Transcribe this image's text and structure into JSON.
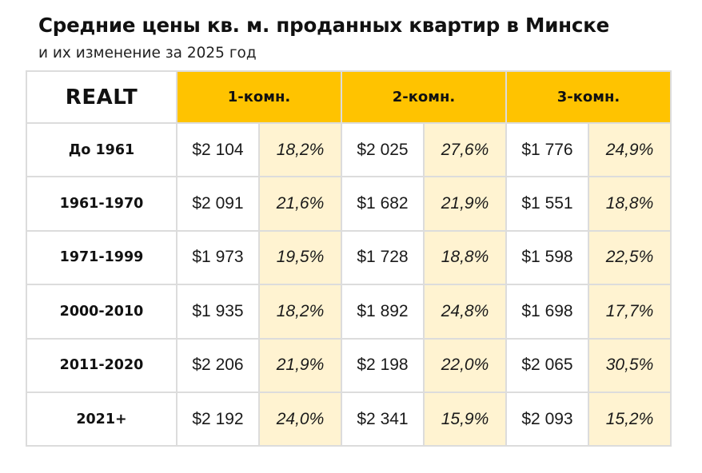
{
  "title": "Средние цены кв. м. проданных квартир в Минске",
  "subtitle": "и их изменение за 2025 год",
  "logo": "REALT",
  "colors": {
    "header_bg": "#ffc300",
    "change_bg": "#fff3d1",
    "border": "#dcdcdc"
  },
  "chart_data": {
    "type": "table",
    "columns": [
      "1-комн.",
      "2-комн.",
      "3-комн."
    ],
    "rows": [
      {
        "period": "До 1961",
        "cells": [
          {
            "price": "$2 104",
            "change": "18,2%"
          },
          {
            "price": "$2 025",
            "change": "27,6%"
          },
          {
            "price": "$1 776",
            "change": "24,9%"
          }
        ]
      },
      {
        "period": "1961-1970",
        "cells": [
          {
            "price": "$2 091",
            "change": "21,6%"
          },
          {
            "price": "$1 682",
            "change": "21,9%"
          },
          {
            "price": "$1 551",
            "change": "18,8%"
          }
        ]
      },
      {
        "period": "1971-1999",
        "cells": [
          {
            "price": "$1 973",
            "change": "19,5%"
          },
          {
            "price": "$1 728",
            "change": "18,8%"
          },
          {
            "price": "$1 598",
            "change": "22,5%"
          }
        ]
      },
      {
        "period": "2000-2010",
        "cells": [
          {
            "price": "$1 935",
            "change": "18,2%"
          },
          {
            "price": "$1 892",
            "change": "24,8%"
          },
          {
            "price": "$1 698",
            "change": "17,7%"
          }
        ]
      },
      {
        "period": "2011-2020",
        "cells": [
          {
            "price": "$2 206",
            "change": "21,9%"
          },
          {
            "price": "$2 198",
            "change": "22,0%"
          },
          {
            "price": "$2 065",
            "change": "30,5%"
          }
        ]
      },
      {
        "period": "2021+",
        "cells": [
          {
            "price": "$2 192",
            "change": "24,0%"
          },
          {
            "price": "$2 341",
            "change": "15,9%"
          },
          {
            "price": "$2 093",
            "change": "15,2%"
          }
        ]
      }
    ]
  }
}
